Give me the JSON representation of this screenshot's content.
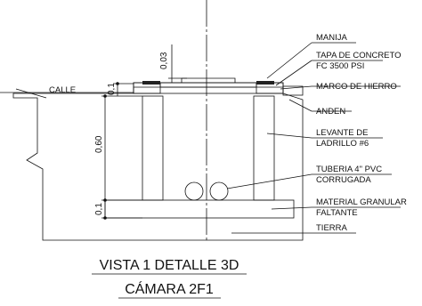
{
  "drawing": {
    "street_label": "CALLE",
    "dimensions": [
      "0,03",
      "0,1",
      "0,60",
      "0,1"
    ],
    "callouts": [
      [
        "MANIJA"
      ],
      [
        "TAPA DE CONCRETO",
        "FC 3500 PSI"
      ],
      [
        "MARCO DE HIERRO"
      ],
      [
        "ANDEN"
      ],
      [
        "LEVANTE DE",
        "LADRILLO #6"
      ],
      [
        "TUBERIA 4\" PVC",
        "CORRUGADA"
      ],
      [
        "MATERIAL GRANULAR",
        "FALTANTE"
      ],
      [
        "TIERRA"
      ]
    ],
    "title": "VISTA 1 DETALLE 3D",
    "subtitle": "CÁMARA 2F1"
  }
}
